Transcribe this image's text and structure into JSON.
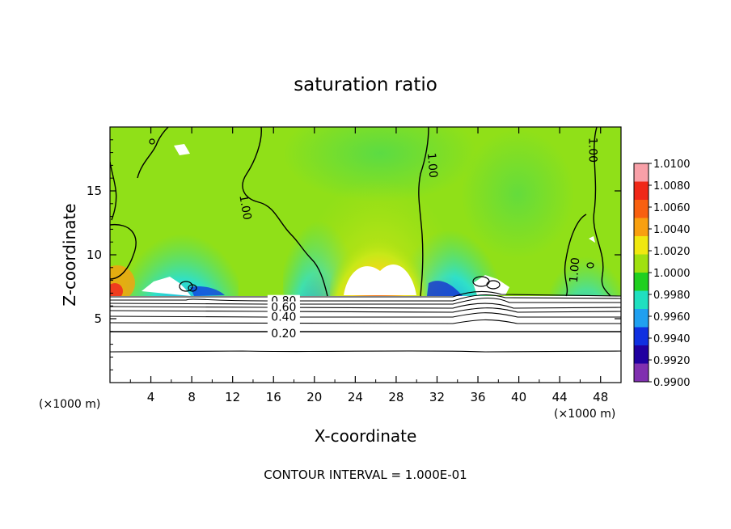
{
  "chart_data": {
    "type": "heatmap",
    "title": "saturation ratio",
    "xlabel": "X-coordinate",
    "ylabel": "Z-coordinate",
    "x_unit": "(×1000 m)",
    "y_unit": "(×1000 m)",
    "xlim": [
      0,
      50
    ],
    "ylim": [
      0,
      20
    ],
    "x_ticks": [
      4,
      8,
      12,
      16,
      20,
      24,
      28,
      32,
      36,
      40,
      44,
      48
    ],
    "y_ticks": [
      5,
      10,
      15
    ],
    "colorbar": {
      "levels": [
        "1.0100",
        "1.0080",
        "1.0060",
        "1.0040",
        "1.0020",
        "1.0000",
        "0.9980",
        "0.9960",
        "0.9940",
        "0.9920",
        "0.9900"
      ],
      "colors": [
        "#f8a0a8",
        "#f02818",
        "#f86010",
        "#f8a010",
        "#f0e810",
        "#a0e010",
        "#20d020",
        "#20e0c0",
        "#20a0f0",
        "#1030e0",
        "#2000a0",
        "#8030b0"
      ]
    },
    "contour_labels": [
      {
        "text": "1.00",
        "x": 13.2,
        "z": 13.7,
        "rotate": 80
      },
      {
        "text": "1.00",
        "x": 31.5,
        "z": 17.0,
        "rotate": 85
      },
      {
        "text": "1.00",
        "x": 47.2,
        "z": 18.2,
        "rotate": 90
      },
      {
        "text": "1.00",
        "x": 45.5,
        "z": 8.8,
        "rotate": -85
      },
      {
        "text": "0.80",
        "x": 17.0,
        "z": 6.35,
        "rotate": 0
      },
      {
        "text": "0.60",
        "x": 17.0,
        "z": 5.85,
        "rotate": 0
      },
      {
        "text": "0.40",
        "x": 17.0,
        "z": 5.1,
        "rotate": 0
      },
      {
        "text": "0.20",
        "x": 17.0,
        "z": 3.8,
        "rotate": 0
      }
    ],
    "grid": false,
    "legend": "colorbar-right"
  },
  "footer": "CONTOUR INTERVAL = 1.000E-01"
}
